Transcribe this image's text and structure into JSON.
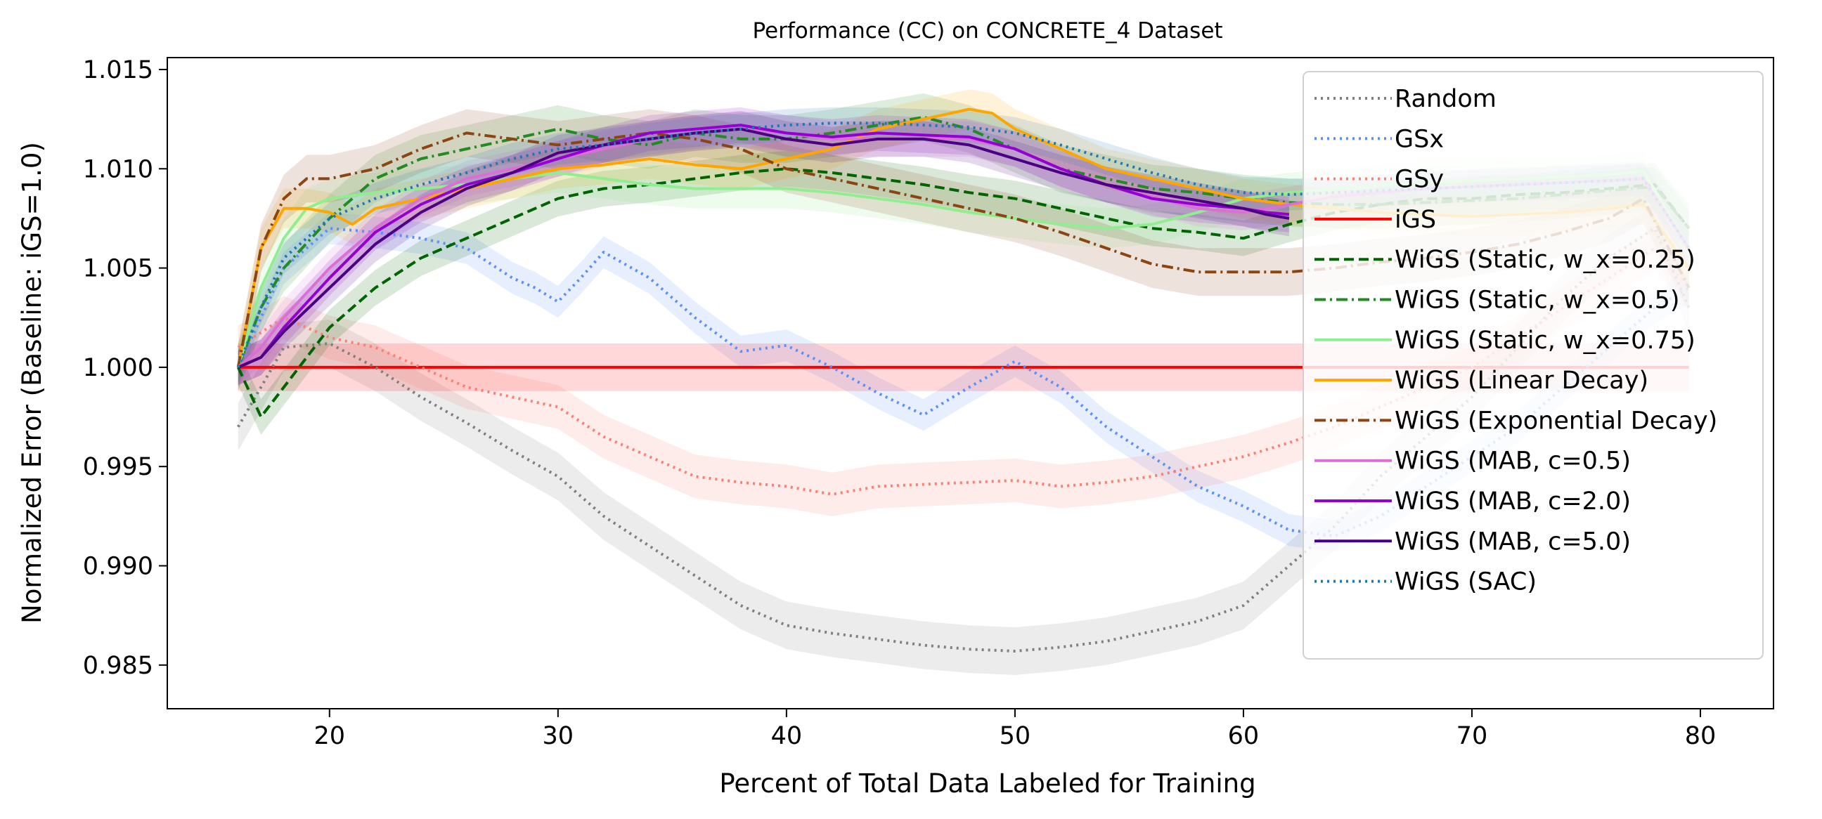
{
  "chart_data": {
    "type": "line",
    "title": "Performance (CC) on CONCRETE_4 Dataset",
    "xlabel": "Percent of Total Data Labeled for Training",
    "ylabel": "Normalized Error (Baseline: iGS=1.0)",
    "xlim": [
      12.9,
      83.2
    ],
    "ylim": [
      0.9828,
      1.0156
    ],
    "xticks": [
      20,
      30,
      40,
      50,
      60,
      70,
      80
    ],
    "yticks": [
      0.985,
      0.99,
      0.995,
      1.0,
      1.005,
      1.01,
      1.015
    ],
    "ytick_labels": [
      "0.985",
      "0.990",
      "0.995",
      "1.000",
      "1.005",
      "1.010",
      "1.015"
    ],
    "grid": false,
    "legend_position": "upper right",
    "series": [
      {
        "name": "Random",
        "color": "#808080",
        "dash": "dotted",
        "band": 0.0012,
        "x": [
          16,
          18,
          20,
          22,
          24,
          26,
          28,
          30,
          32,
          34,
          36,
          38,
          40,
          42,
          44,
          46,
          48,
          50,
          52,
          54,
          56,
          58,
          60,
          62,
          64,
          66,
          68,
          70,
          72,
          74,
          76,
          78,
          79.5
        ],
        "y": [
          0.997,
          1.001,
          1.0012,
          1.0,
          0.9985,
          0.9972,
          0.9958,
          0.9945,
          0.9925,
          0.991,
          0.9895,
          0.988,
          0.987,
          0.9866,
          0.9863,
          0.986,
          0.9858,
          0.9857,
          0.9859,
          0.9862,
          0.9867,
          0.9872,
          0.988,
          0.99,
          0.992,
          0.9945,
          0.9965,
          0.9985,
          1.001,
          1.0035,
          1.0055,
          1.007,
          1.003
        ]
      },
      {
        "name": "GSx",
        "color": "#5b8ff9",
        "dash": "dotted",
        "band": 0.0008,
        "x": [
          16,
          18,
          20,
          22,
          24,
          26,
          28,
          29,
          30,
          31,
          32,
          34,
          36,
          38,
          40,
          42,
          44,
          46,
          47,
          48,
          50,
          52,
          54,
          56,
          58,
          60,
          62,
          64,
          66,
          68,
          70,
          72,
          74,
          76,
          78,
          79.5
        ],
        "y": [
          1.0,
          1.005,
          1.007,
          1.0068,
          1.0065,
          1.006,
          1.0045,
          1.004,
          1.0033,
          1.0045,
          1.0058,
          1.0045,
          1.0025,
          1.0008,
          1.0011,
          1.0,
          0.9987,
          0.9976,
          0.9983,
          0.999,
          1.0003,
          0.999,
          0.997,
          0.9955,
          0.994,
          0.993,
          0.9918,
          0.9915,
          0.9925,
          0.994,
          0.9955,
          0.997,
          0.999,
          1.001,
          1.003,
          1.004
        ]
      },
      {
        "name": "GSy",
        "color": "#fa8072",
        "dash": "dotted",
        "band": 0.0011,
        "x": [
          16,
          18,
          20,
          22,
          24,
          26,
          28,
          30,
          32,
          34,
          36,
          38,
          40,
          42,
          44,
          46,
          48,
          50,
          52,
          54,
          56,
          58,
          60,
          62,
          64,
          66,
          68,
          70,
          72,
          74,
          76,
          78,
          79.5
        ],
        "y": [
          1.001,
          1.0025,
          1.0015,
          1.001,
          1.0,
          0.999,
          0.9985,
          0.998,
          0.9965,
          0.9955,
          0.9945,
          0.9942,
          0.994,
          0.9936,
          0.994,
          0.9941,
          0.9942,
          0.9943,
          0.994,
          0.9942,
          0.9945,
          0.995,
          0.9955,
          0.9962,
          0.997,
          0.998,
          0.999,
          1.0,
          1.0015,
          1.003,
          1.0045,
          1.006,
          1.004
        ]
      },
      {
        "name": "iGS",
        "color": "#ff0000",
        "dash": "solid",
        "band": 0.0012,
        "x": [
          16,
          79.5
        ],
        "y": [
          1.0,
          1.0
        ]
      },
      {
        "name": "WiGS (Static, w_x=0.25)",
        "color": "#006400",
        "dash": "dashed",
        "band": 0.0009,
        "x": [
          16,
          17,
          18,
          20,
          22,
          24,
          26,
          28,
          30,
          32,
          34,
          36,
          38,
          40,
          42,
          44,
          46,
          48,
          50,
          52,
          54,
          56,
          58,
          60,
          62,
          64,
          66,
          68,
          70,
          72,
          74,
          76,
          78,
          79.5
        ],
        "y": [
          1.0,
          0.9975,
          0.999,
          1.002,
          1.004,
          1.0055,
          1.0065,
          1.0075,
          1.0085,
          1.009,
          1.0092,
          1.0095,
          1.0098,
          1.01,
          1.0098,
          1.0095,
          1.0092,
          1.0088,
          1.0085,
          1.008,
          1.0075,
          1.007,
          1.0068,
          1.0065,
          1.0072,
          1.0078,
          1.0082,
          1.0085,
          1.0085,
          1.0087,
          1.0088,
          1.009,
          1.0092,
          1.007
        ]
      },
      {
        "name": "WiGS (Static, w_x=0.5)",
        "color": "#228b22",
        "dash": "dashdot",
        "band": 0.0012,
        "x": [
          16,
          17,
          18,
          20,
          22,
          24,
          26,
          28,
          30,
          32,
          34,
          36,
          38,
          40,
          42,
          44,
          46,
          48,
          50,
          52,
          54,
          56,
          58,
          60,
          62,
          64,
          66,
          68,
          70,
          72,
          74,
          76,
          78,
          79.5
        ],
        "y": [
          1.0,
          1.003,
          1.005,
          1.0075,
          1.0095,
          1.0105,
          1.011,
          1.0115,
          1.012,
          1.0115,
          1.0112,
          1.0118,
          1.0115,
          1.0115,
          1.0118,
          1.0122,
          1.0126,
          1.012,
          1.011,
          1.01,
          1.0095,
          1.009,
          1.0088,
          1.0085,
          1.0083,
          1.0082,
          1.0082,
          1.0083,
          1.0084,
          1.0085,
          1.0087,
          1.0089,
          1.0091,
          1.007
        ]
      },
      {
        "name": "WiGS (Static, w_x=0.75)",
        "color": "#90ee90",
        "dash": "solid",
        "band": 0.001,
        "x": [
          16,
          17,
          18,
          19,
          20,
          22,
          24,
          26,
          28,
          30,
          32,
          34,
          36,
          38,
          40,
          42,
          44,
          46,
          48,
          50,
          52,
          54,
          56,
          58,
          60,
          62,
          64,
          66,
          68,
          70,
          72,
          74,
          76,
          77.5,
          79.5
        ],
        "y": [
          1.0,
          1.004,
          1.0065,
          1.008,
          1.0085,
          1.0088,
          1.009,
          1.0092,
          1.0095,
          1.0098,
          1.0095,
          1.0092,
          1.009,
          1.009,
          1.009,
          1.0088,
          1.0085,
          1.0082,
          1.0078,
          1.0075,
          1.0072,
          1.007,
          1.0072,
          1.0078,
          1.0085,
          1.0088,
          1.009,
          1.0092,
          1.0093,
          1.0094,
          1.0095,
          1.0096,
          1.0097,
          1.0099,
          1.006
        ]
      },
      {
        "name": "WiGS (Linear Decay)",
        "color": "#ffa500",
        "dash": "solid",
        "band": 0.001,
        "x": [
          16,
          17,
          18,
          19,
          20,
          21,
          22,
          24,
          26,
          28,
          30,
          32,
          34,
          36,
          38,
          40,
          42,
          44,
          46,
          48,
          49,
          50,
          52,
          54,
          56,
          58,
          60,
          62,
          64,
          66,
          68,
          70,
          72,
          74,
          76,
          77.5,
          79.5
        ],
        "y": [
          1.0,
          1.006,
          1.008,
          1.008,
          1.0078,
          1.0072,
          1.008,
          1.0085,
          1.009,
          1.0095,
          1.01,
          1.0102,
          1.0105,
          1.0102,
          1.01,
          1.0105,
          1.011,
          1.012,
          1.0125,
          1.013,
          1.0128,
          1.012,
          1.011,
          1.01,
          1.0095,
          1.009,
          1.0085,
          1.0082,
          1.008,
          1.0078,
          1.0077,
          1.0076,
          1.0077,
          1.0078,
          1.008,
          1.0082,
          1.005
        ]
      },
      {
        "name": "WiGS (Exponential Decay)",
        "color": "#8b4513",
        "dash": "dashdot",
        "band": 0.0012,
        "x": [
          16,
          17,
          18,
          19,
          20,
          22,
          24,
          26,
          28,
          30,
          32,
          34,
          36,
          38,
          40,
          42,
          44,
          46,
          48,
          50,
          52,
          54,
          56,
          58,
          60,
          62,
          64,
          66,
          68,
          70,
          72,
          74,
          76,
          77.5,
          79.5
        ],
        "y": [
          1.0,
          1.006,
          1.0085,
          1.0095,
          1.0095,
          1.01,
          1.011,
          1.0118,
          1.0115,
          1.0112,
          1.0115,
          1.0118,
          1.0115,
          1.011,
          1.01,
          1.0095,
          1.009,
          1.0085,
          1.008,
          1.0075,
          1.0068,
          1.006,
          1.0052,
          1.0048,
          1.0048,
          1.0048,
          1.005,
          1.0053,
          1.0055,
          1.0058,
          1.0062,
          1.0068,
          1.0075,
          1.0085,
          1.004
        ]
      },
      {
        "name": "WiGS (MAB, c=0.5)",
        "color": "#da70d6",
        "dash": "solid",
        "band": 0.0009,
        "x": [
          16,
          17,
          18,
          20,
          22,
          24,
          26,
          28,
          30,
          32,
          34,
          36,
          38,
          40,
          42,
          44,
          46,
          48,
          50,
          52,
          54,
          56,
          58,
          60,
          62,
          64,
          66,
          68,
          70,
          72,
          74,
          76,
          77.5,
          79.5
        ],
        "y": [
          1.0,
          1.001,
          1.0025,
          1.005,
          1.007,
          1.0085,
          1.0095,
          1.01,
          1.0105,
          1.011,
          1.0115,
          1.0118,
          1.012,
          1.0118,
          1.0115,
          1.0115,
          1.0115,
          1.0115,
          1.011,
          1.01,
          1.0092,
          1.0086,
          1.008,
          1.0078,
          1.0082,
          1.0086,
          1.0088,
          1.009,
          1.0091,
          1.0092,
          1.0093,
          1.0094,
          1.0095,
          1.006
        ]
      },
      {
        "name": "WiGS (MAB, c=2.0)",
        "color": "#9400d3",
        "dash": "solid",
        "band": 0.0009,
        "x": [
          16,
          17,
          18,
          20,
          22,
          24,
          26,
          28,
          30,
          32,
          34,
          36,
          38,
          40,
          42,
          44,
          46,
          48,
          50,
          52,
          54,
          56,
          58,
          60,
          61,
          62
        ],
        "y": [
          1.0,
          1.0005,
          1.002,
          1.0045,
          1.0068,
          1.0082,
          1.0092,
          1.0098,
          1.0105,
          1.0112,
          1.0118,
          1.012,
          1.0122,
          1.0118,
          1.0116,
          1.0118,
          1.0117,
          1.0116,
          1.011,
          1.01,
          1.0092,
          1.0085,
          1.0082,
          1.008,
          1.0078,
          1.0077
        ]
      },
      {
        "name": "WiGS (MAB, c=5.0)",
        "color": "#4b0082",
        "dash": "solid",
        "band": 0.0009,
        "x": [
          16,
          17,
          18,
          20,
          22,
          24,
          26,
          28,
          30,
          32,
          34,
          36,
          38,
          40,
          42,
          44,
          46,
          48,
          50,
          52,
          54,
          56,
          58,
          60,
          61,
          62
        ],
        "y": [
          1.0,
          1.0005,
          1.0018,
          1.004,
          1.0062,
          1.0078,
          1.009,
          1.0098,
          1.0108,
          1.0112,
          1.0115,
          1.0118,
          1.012,
          1.0115,
          1.0112,
          1.0115,
          1.0115,
          1.0112,
          1.0105,
          1.0098,
          1.0092,
          1.0088,
          1.0084,
          1.008,
          1.0077,
          1.0075
        ]
      },
      {
        "name": "WiGS (SAC)",
        "color": "#1f77b4",
        "dash": "dotted",
        "band": 0.0008,
        "x": [
          16,
          17,
          18,
          20,
          22,
          24,
          26,
          28,
          30,
          32,
          34,
          36,
          38,
          40,
          42,
          44,
          46,
          48,
          50,
          52,
          54,
          56,
          58,
          60,
          62,
          64,
          66,
          68,
          70,
          72,
          74,
          76,
          77.5,
          79.5
        ],
        "y": [
          1.0,
          1.003,
          1.0055,
          1.0075,
          1.0085,
          1.0092,
          1.0098,
          1.0105,
          1.011,
          1.0112,
          1.0115,
          1.0118,
          1.012,
          1.0122,
          1.0123,
          1.0123,
          1.0122,
          1.0121,
          1.0118,
          1.0112,
          1.0105,
          1.0098,
          1.0092,
          1.0088,
          1.0087,
          1.0088,
          1.0089,
          1.009,
          1.0091,
          1.0092,
          1.0093,
          1.0094,
          1.0095,
          1.006
        ]
      }
    ]
  }
}
